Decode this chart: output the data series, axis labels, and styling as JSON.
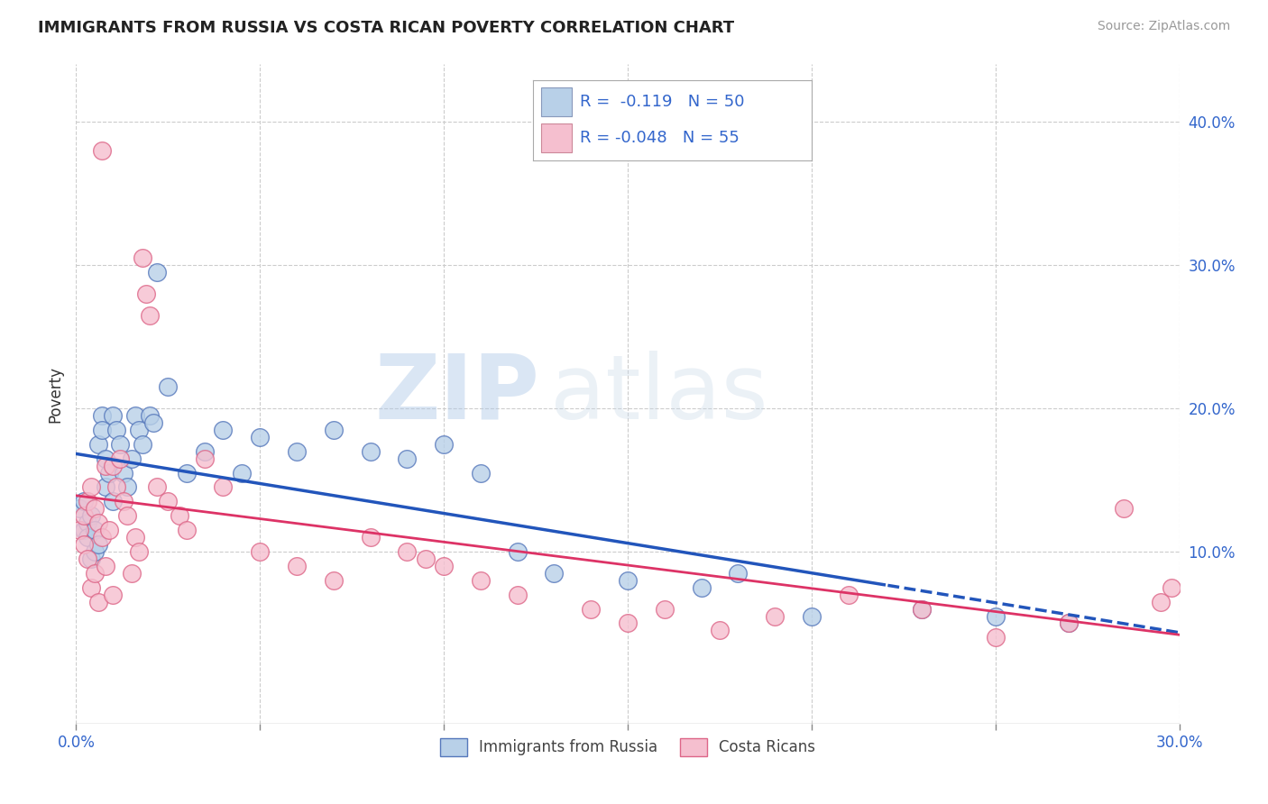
{
  "title": "IMMIGRANTS FROM RUSSIA VS COSTA RICAN POVERTY CORRELATION CHART",
  "source": "Source: ZipAtlas.com",
  "ylabel": "Poverty",
  "xlim": [
    0.0,
    0.3
  ],
  "ylim": [
    -0.02,
    0.44
  ],
  "xticks": [
    0.0,
    0.05,
    0.1,
    0.15,
    0.2,
    0.25,
    0.3
  ],
  "xticklabels_show": [
    "0.0%",
    "",
    "",
    "",
    "",
    "",
    "30.0%"
  ],
  "yticks_right": [
    0.1,
    0.2,
    0.3,
    0.4
  ],
  "yticklabels_right": [
    "10.0%",
    "20.0%",
    "30.0%",
    "40.0%"
  ],
  "series1_name": "Immigrants from Russia",
  "series1_color": "#b8d0e8",
  "series1_edge": "#5577bb",
  "series1_R": "-0.119",
  "series1_N": "50",
  "series2_name": "Costa Ricans",
  "series2_color": "#f5bfcf",
  "series2_edge": "#dd6688",
  "series2_R": "-0.048",
  "series2_N": "55",
  "legend_R_color": "#3366cc",
  "watermark_zip": "ZIP",
  "watermark_atlas": "atlas",
  "background_color": "#ffffff",
  "grid_color": "#cccccc",
  "title_color": "#222222",
  "reg1_color": "#2255bb",
  "reg2_color": "#dd3366",
  "series1_x": [
    0.001,
    0.002,
    0.002,
    0.003,
    0.003,
    0.004,
    0.004,
    0.005,
    0.005,
    0.006,
    0.006,
    0.007,
    0.007,
    0.008,
    0.008,
    0.009,
    0.01,
    0.01,
    0.011,
    0.012,
    0.013,
    0.014,
    0.015,
    0.016,
    0.017,
    0.018,
    0.02,
    0.021,
    0.022,
    0.025,
    0.03,
    0.035,
    0.04,
    0.045,
    0.05,
    0.06,
    0.07,
    0.08,
    0.09,
    0.1,
    0.11,
    0.12,
    0.13,
    0.15,
    0.17,
    0.18,
    0.2,
    0.23,
    0.25,
    0.27
  ],
  "series1_y": [
    0.13,
    0.135,
    0.115,
    0.12,
    0.11,
    0.125,
    0.095,
    0.115,
    0.1,
    0.175,
    0.105,
    0.195,
    0.185,
    0.165,
    0.145,
    0.155,
    0.195,
    0.135,
    0.185,
    0.175,
    0.155,
    0.145,
    0.165,
    0.195,
    0.185,
    0.175,
    0.195,
    0.19,
    0.295,
    0.215,
    0.155,
    0.17,
    0.185,
    0.155,
    0.18,
    0.17,
    0.185,
    0.17,
    0.165,
    0.175,
    0.155,
    0.1,
    0.085,
    0.08,
    0.075,
    0.085,
    0.055,
    0.06,
    0.055,
    0.05
  ],
  "series2_x": [
    0.001,
    0.002,
    0.002,
    0.003,
    0.003,
    0.004,
    0.004,
    0.005,
    0.005,
    0.006,
    0.006,
    0.007,
    0.007,
    0.008,
    0.008,
    0.009,
    0.01,
    0.01,
    0.011,
    0.012,
    0.013,
    0.014,
    0.015,
    0.016,
    0.017,
    0.018,
    0.019,
    0.02,
    0.022,
    0.025,
    0.028,
    0.03,
    0.035,
    0.04,
    0.05,
    0.06,
    0.07,
    0.08,
    0.09,
    0.095,
    0.1,
    0.11,
    0.12,
    0.14,
    0.15,
    0.16,
    0.175,
    0.19,
    0.21,
    0.23,
    0.25,
    0.27,
    0.285,
    0.295,
    0.298
  ],
  "series2_y": [
    0.115,
    0.125,
    0.105,
    0.135,
    0.095,
    0.145,
    0.075,
    0.13,
    0.085,
    0.12,
    0.065,
    0.38,
    0.11,
    0.16,
    0.09,
    0.115,
    0.16,
    0.07,
    0.145,
    0.165,
    0.135,
    0.125,
    0.085,
    0.11,
    0.1,
    0.305,
    0.28,
    0.265,
    0.145,
    0.135,
    0.125,
    0.115,
    0.165,
    0.145,
    0.1,
    0.09,
    0.08,
    0.11,
    0.1,
    0.095,
    0.09,
    0.08,
    0.07,
    0.06,
    0.05,
    0.06,
    0.045,
    0.055,
    0.07,
    0.06,
    0.04,
    0.05,
    0.13,
    0.065,
    0.075
  ]
}
